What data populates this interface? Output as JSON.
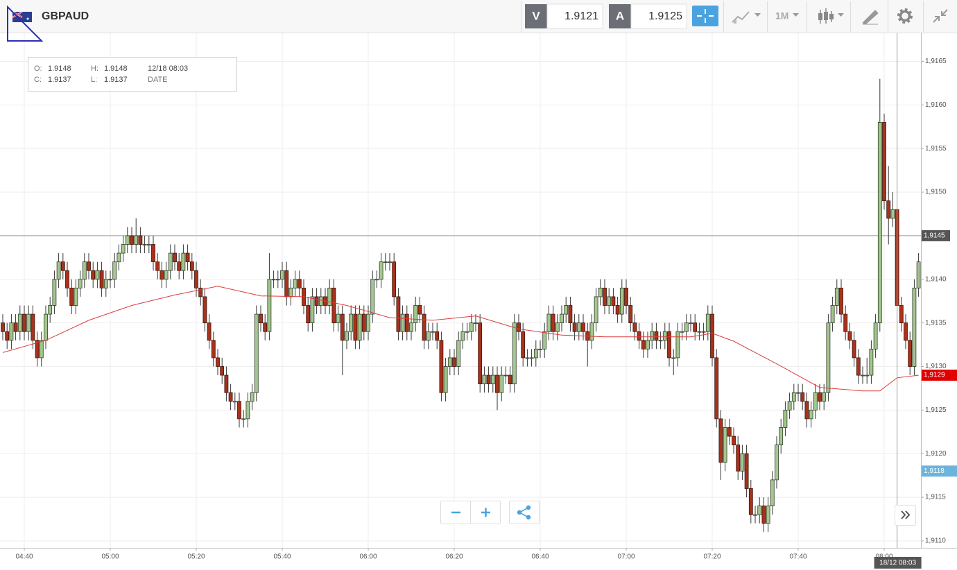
{
  "toolbar": {
    "symbol": "GBPAUD",
    "sell_label": "V",
    "sell": 1.9121,
    "buy_label": "A",
    "buy": 1.9125,
    "timeframe": "1M"
  },
  "tooltip": {
    "open_label": "O:",
    "open": 1.9148,
    "high_label": "H:",
    "high": 1.9148,
    "close_label": "C:",
    "close": 1.9137,
    "low_label": "L:",
    "low": 1.9137,
    "date": "12/18 08:03",
    "date_label": "DATE"
  },
  "chart_data": {
    "type": "candlestick",
    "up_color": "#a3c78f",
    "down_color": "#a8321c",
    "grid": true,
    "ylim": [
      1.91092,
      1.91683
    ],
    "yticks": [
      {
        "value": 1.9165,
        "label": "1,9165"
      },
      {
        "value": 1.916,
        "label": "1,9160"
      },
      {
        "value": 1.9155,
        "label": "1,9155"
      },
      {
        "value": 1.915,
        "label": "1,9150"
      },
      {
        "value": 1.9145,
        "label": "1,9145"
      },
      {
        "value": 1.914,
        "label": "1,9140"
      },
      {
        "value": 1.9135,
        "label": "1,9135"
      },
      {
        "value": 1.913,
        "label": "1,9130"
      },
      {
        "value": 1.9125,
        "label": "1,9125"
      },
      {
        "value": 1.912,
        "label": "1,9120"
      },
      {
        "value": 1.9115,
        "label": "1,9115"
      },
      {
        "value": 1.911,
        "label": "1,9110"
      }
    ],
    "xticks": [
      "04:40",
      "05:00",
      "05:20",
      "05:40",
      "06:00",
      "06:20",
      "06:40",
      "07:00",
      "07:20",
      "07:40",
      "08:00"
    ],
    "x": [
      "04:35",
      "04:36",
      "04:37",
      "04:38",
      "04:39",
      "04:40",
      "04:41",
      "04:42",
      "04:43",
      "04:44",
      "04:45",
      "04:46",
      "04:47",
      "04:48",
      "04:49",
      "04:50",
      "04:51",
      "04:52",
      "04:53",
      "04:54",
      "04:55",
      "04:56",
      "04:57",
      "04:58",
      "04:59",
      "05:00",
      "05:01",
      "05:02",
      "05:03",
      "05:04",
      "05:05",
      "05:06",
      "05:07",
      "05:08",
      "05:09",
      "05:10",
      "05:11",
      "05:12",
      "05:13",
      "05:14",
      "05:15",
      "05:16",
      "05:17",
      "05:18",
      "05:19",
      "05:20",
      "05:21",
      "05:22",
      "05:23",
      "05:24",
      "05:25",
      "05:26",
      "05:27",
      "05:28",
      "05:29",
      "05:30",
      "05:31",
      "05:32",
      "05:33",
      "05:34",
      "05:35",
      "05:36",
      "05:37",
      "05:38",
      "05:39",
      "05:40",
      "05:41",
      "05:42",
      "05:43",
      "05:44",
      "05:45",
      "05:46",
      "05:47",
      "05:48",
      "05:49",
      "05:50",
      "05:51",
      "05:52",
      "05:53",
      "05:54",
      "05:55",
      "05:56",
      "05:57",
      "05:58",
      "05:59",
      "06:00",
      "06:01",
      "06:02",
      "06:03",
      "06:04",
      "06:05",
      "06:06",
      "06:07",
      "06:08",
      "06:09",
      "06:10",
      "06:11",
      "06:12",
      "06:13",
      "06:14",
      "06:15",
      "06:16",
      "06:17",
      "06:18",
      "06:19",
      "06:20",
      "06:21",
      "06:22",
      "06:23",
      "06:24",
      "06:25",
      "06:26",
      "06:27",
      "06:28",
      "06:29",
      "06:30",
      "06:31",
      "06:32",
      "06:33",
      "06:34",
      "06:35",
      "06:36",
      "06:37",
      "06:38",
      "06:39",
      "06:40",
      "06:41",
      "06:42",
      "06:43",
      "06:44",
      "06:45",
      "06:46",
      "06:47",
      "06:48",
      "06:49",
      "06:50",
      "06:51",
      "06:52",
      "06:53",
      "06:54",
      "06:55",
      "06:56",
      "06:57",
      "06:58",
      "06:59",
      "07:00",
      "07:01",
      "07:02",
      "07:03",
      "07:04",
      "07:05",
      "07:06",
      "07:07",
      "07:08",
      "07:09",
      "07:10",
      "07:11",
      "07:12",
      "07:13",
      "07:14",
      "07:15",
      "07:16",
      "07:17",
      "07:18",
      "07:19",
      "07:20",
      "07:21",
      "07:22",
      "07:23",
      "07:24",
      "07:25",
      "07:26",
      "07:27",
      "07:28",
      "07:29",
      "07:30",
      "07:31",
      "07:32",
      "07:33",
      "07:34",
      "07:35",
      "07:36",
      "07:37",
      "07:38",
      "07:39",
      "07:40",
      "07:41",
      "07:42",
      "07:43",
      "07:44",
      "07:45",
      "07:46",
      "07:47",
      "07:48",
      "07:49",
      "07:50",
      "07:51",
      "07:52",
      "07:53",
      "07:54",
      "07:55",
      "07:56",
      "07:57",
      "07:58",
      "07:59",
      "08:00",
      "08:01",
      "08:02",
      "08:03",
      "08:04",
      "08:05",
      "08:06",
      "08:07",
      "08:08"
    ],
    "open": [
      1.9135,
      1.9134,
      1.9133,
      1.9135,
      1.9134,
      1.9136,
      1.9134,
      1.9136,
      1.9133,
      1.9131,
      1.9133,
      1.9136,
      1.9137,
      1.914,
      1.9142,
      1.9141,
      1.9139,
      1.9137,
      1.9139,
      1.914,
      1.9142,
      1.9141,
      1.914,
      1.9141,
      1.9139,
      1.914,
      1.914,
      1.9142,
      1.9143,
      1.9144,
      1.9145,
      1.9144,
      1.9145,
      1.9144,
      1.9144,
      1.9144,
      1.9142,
      1.9141,
      1.914,
      1.9141,
      1.9143,
      1.9142,
      1.9141,
      1.9143,
      1.9142,
      1.9141,
      1.9139,
      1.9138,
      1.9135,
      1.9133,
      1.9131,
      1.913,
      1.9129,
      1.9127,
      1.9126,
      1.9126,
      1.9124,
      1.9124,
      1.9126,
      1.9127,
      1.9136,
      1.9135,
      1.9134,
      1.914,
      1.914,
      1.914,
      1.9141,
      1.9138,
      1.9139,
      1.914,
      1.9139,
      1.9137,
      1.9135,
      1.9138,
      1.9137,
      1.9138,
      1.9137,
      1.9139,
      1.9135,
      1.9136,
      1.9133,
      1.9134,
      1.9136,
      1.9133,
      1.9136,
      1.9134,
      1.9136,
      1.914,
      1.914,
      1.9142,
      1.9142,
      1.9142,
      1.9138,
      1.9134,
      1.9136,
      1.9134,
      1.9135,
      1.9137,
      1.9136,
      1.9133,
      1.9134,
      1.9134,
      1.9133,
      1.9127,
      1.913,
      1.9131,
      1.913,
      1.9133,
      1.9134,
      1.9134,
      1.9135,
      1.9135,
      1.9128,
      1.9129,
      1.9128,
      1.9129,
      1.9127,
      1.9129,
      1.9129,
      1.9128,
      1.9135,
      1.9134,
      1.9131,
      1.9131,
      1.9131,
      1.9132,
      1.9132,
      1.9134,
      1.9136,
      1.9134,
      1.9135,
      1.9136,
      1.9137,
      1.9135,
      1.9134,
      1.9135,
      1.9134,
      1.9133,
      1.9135,
      1.9138,
      1.9139,
      1.9137,
      1.9138,
      1.9137,
      1.9136,
      1.9139,
      1.9137,
      1.9135,
      1.9134,
      1.9133,
      1.9132,
      1.9133,
      1.9134,
      1.9133,
      1.9133,
      1.9134,
      1.9131,
      1.9131,
      1.9134,
      1.9134,
      1.9135,
      1.9135,
      1.9134,
      1.9134,
      1.9134,
      1.9136,
      1.9131,
      1.9124,
      1.9119,
      1.9123,
      1.9122,
      1.9121,
      1.9118,
      1.912,
      1.9116,
      1.9113,
      1.9113,
      1.9114,
      1.9112,
      1.9114,
      1.9117,
      1.9121,
      1.9123,
      1.9125,
      1.9126,
      1.9127,
      1.9127,
      1.9126,
      1.9124,
      1.9125,
      1.9127,
      1.9126,
      1.9127,
      1.9135,
      1.9137,
      1.9139,
      1.9136,
      1.9134,
      1.9133,
      1.9131,
      1.9129,
      1.9129,
      1.9129,
      1.9132,
      1.9135,
      1.9158,
      1.9149,
      1.9147,
      1.9148,
      1.9137,
      1.9135,
      1.9133,
      1.913,
      1.9139
    ],
    "high": [
      1.9136,
      1.9135,
      1.9136,
      1.9136,
      1.9137,
      1.9137,
      1.9137,
      1.9137,
      1.9134,
      1.9134,
      1.9137,
      1.9138,
      1.9141,
      1.9143,
      1.9143,
      1.9142,
      1.914,
      1.914,
      1.9141,
      1.9143,
      1.9143,
      1.9142,
      1.9142,
      1.9142,
      1.9141,
      1.9141,
      1.9143,
      1.9144,
      1.9145,
      1.9146,
      1.9146,
      1.9147,
      1.9146,
      1.9145,
      1.9145,
      1.9145,
      1.9143,
      1.9142,
      1.9142,
      1.9144,
      1.9144,
      1.9143,
      1.9144,
      1.9144,
      1.9143,
      1.9142,
      1.914,
      1.9139,
      1.9136,
      1.9134,
      1.9132,
      1.9131,
      1.913,
      1.9128,
      1.9127,
      1.9127,
      1.9125,
      1.9127,
      1.9128,
      1.9137,
      1.9137,
      1.9136,
      1.9143,
      1.9141,
      1.9141,
      1.9142,
      1.9142,
      1.914,
      1.9141,
      1.9141,
      1.914,
      1.9138,
      1.9139,
      1.9139,
      1.9139,
      1.9139,
      1.914,
      1.914,
      1.9137,
      1.9137,
      1.9135,
      1.9137,
      1.9137,
      1.9137,
      1.9137,
      1.9137,
      1.9141,
      1.9141,
      1.9143,
      1.9143,
      1.9143,
      1.9143,
      1.9139,
      1.9137,
      1.9137,
      1.9136,
      1.9138,
      1.9138,
      1.9137,
      1.9135,
      1.9135,
      1.9135,
      1.9134,
      1.9131,
      1.9132,
      1.9132,
      1.9134,
      1.9135,
      1.9135,
      1.9136,
      1.9136,
      1.9136,
      1.913,
      1.913,
      1.913,
      1.913,
      1.913,
      1.913,
      1.913,
      1.9136,
      1.9136,
      1.9135,
      1.9132,
      1.9132,
      1.9133,
      1.9133,
      1.9135,
      1.9137,
      1.9137,
      1.9136,
      1.9137,
      1.9138,
      1.9138,
      1.9136,
      1.9136,
      1.9136,
      1.9135,
      1.9136,
      1.9139,
      1.914,
      1.914,
      1.9139,
      1.9139,
      1.9138,
      1.914,
      1.914,
      1.9138,
      1.9136,
      1.9135,
      1.9134,
      1.9134,
      1.9135,
      1.9135,
      1.9134,
      1.9135,
      1.9135,
      1.9132,
      1.9135,
      1.9135,
      1.9136,
      1.9136,
      1.9136,
      1.9135,
      1.9135,
      1.9137,
      1.9137,
      1.9132,
      1.9125,
      1.9124,
      1.9124,
      1.9123,
      1.9122,
      1.9121,
      1.9121,
      1.9117,
      1.9114,
      1.9115,
      1.9115,
      1.9115,
      1.9118,
      1.9122,
      1.9124,
      1.9126,
      1.9127,
      1.9128,
      1.9128,
      1.9128,
      1.9127,
      1.9126,
      1.9128,
      1.9128,
      1.9128,
      1.9136,
      1.9138,
      1.914,
      1.914,
      1.9137,
      1.9135,
      1.9134,
      1.9132,
      1.913,
      1.9131,
      1.9133,
      1.9136,
      1.9163,
      1.9159,
      1.9153,
      1.915,
      1.9148,
      1.9138,
      1.9136,
      1.9134,
      1.914,
      1.9143
    ],
    "low": [
      1.9133,
      1.9132,
      1.9132,
      1.9133,
      1.9133,
      1.9133,
      1.9133,
      1.9132,
      1.913,
      1.913,
      1.9132,
      1.9135,
      1.9136,
      1.9139,
      1.914,
      1.9138,
      1.9136,
      1.9136,
      1.9138,
      1.9139,
      1.914,
      1.9139,
      1.9139,
      1.9138,
      1.9138,
      1.9139,
      1.9139,
      1.9141,
      1.9142,
      1.9143,
      1.9143,
      1.9143,
      1.9143,
      1.9143,
      1.9143,
      1.9141,
      1.914,
      1.9139,
      1.9139,
      1.914,
      1.9141,
      1.914,
      1.914,
      1.9141,
      1.914,
      1.9138,
      1.9137,
      1.9134,
      1.9132,
      1.913,
      1.9129,
      1.9128,
      1.9126,
      1.9125,
      1.9125,
      1.9123,
      1.9123,
      1.9123,
      1.9125,
      1.9126,
      1.9134,
      1.9133,
      1.9133,
      1.9139,
      1.9139,
      1.9139,
      1.9137,
      1.9137,
      1.9138,
      1.9138,
      1.9136,
      1.9134,
      1.9134,
      1.9136,
      1.9136,
      1.9136,
      1.9136,
      1.9134,
      1.9134,
      1.9129,
      1.9132,
      1.9133,
      1.9132,
      1.9132,
      1.9133,
      1.9133,
      1.9135,
      1.9139,
      1.9139,
      1.9141,
      1.9141,
      1.9137,
      1.9133,
      1.9133,
      1.9133,
      1.9133,
      1.9134,
      1.9135,
      1.9132,
      1.9132,
      1.9133,
      1.9132,
      1.9126,
      1.9126,
      1.9129,
      1.9129,
      1.9129,
      1.9132,
      1.9133,
      1.9133,
      1.9134,
      1.9127,
      1.9127,
      1.9127,
      1.9127,
      1.9125,
      1.9126,
      1.9128,
      1.9127,
      1.9127,
      1.9133,
      1.913,
      1.913,
      1.913,
      1.913,
      1.9131,
      1.9131,
      1.9133,
      1.9133,
      1.9133,
      1.9134,
      1.9135,
      1.9134,
      1.9133,
      1.9133,
      1.9133,
      1.913,
      1.9132,
      1.9134,
      1.9137,
      1.9136,
      1.9136,
      1.9136,
      1.9135,
      1.9135,
      1.9136,
      1.9134,
      1.9133,
      1.9132,
      1.9131,
      1.9131,
      1.9132,
      1.9132,
      1.9132,
      1.9132,
      1.913,
      1.9129,
      1.913,
      1.9133,
      1.9133,
      1.9134,
      1.9133,
      1.9133,
      1.9133,
      1.9133,
      1.913,
      1.9123,
      1.9117,
      1.9118,
      1.9121,
      1.912,
      1.9117,
      1.9117,
      1.9115,
      1.9112,
      1.9112,
      1.9112,
      1.9111,
      1.9111,
      1.9113,
      1.9116,
      1.912,
      1.9122,
      1.9124,
      1.9125,
      1.9126,
      1.9125,
      1.9123,
      1.9123,
      1.9124,
      1.9125,
      1.9125,
      1.9126,
      1.9134,
      1.9136,
      1.9135,
      1.9133,
      1.9132,
      1.913,
      1.9128,
      1.9128,
      1.9128,
      1.9128,
      1.9131,
      1.9134,
      1.9148,
      1.9144,
      1.9146,
      1.9137,
      1.9134,
      1.9132,
      1.9129,
      1.9129,
      1.9138
    ],
    "close": [
      1.9134,
      1.9133,
      1.9135,
      1.9134,
      1.9136,
      1.9134,
      1.9136,
      1.9133,
      1.9131,
      1.9133,
      1.9136,
      1.9137,
      1.914,
      1.9142,
      1.9141,
      1.9139,
      1.9137,
      1.9139,
      1.914,
      1.9142,
      1.9141,
      1.914,
      1.9141,
      1.9139,
      1.914,
      1.914,
      1.9142,
      1.9143,
      1.9144,
      1.9145,
      1.9144,
      1.9145,
      1.9144,
      1.9144,
      1.9144,
      1.9142,
      1.9141,
      1.914,
      1.9141,
      1.9143,
      1.9142,
      1.9141,
      1.9143,
      1.9142,
      1.9141,
      1.9139,
      1.9138,
      1.9135,
      1.9133,
      1.9131,
      1.913,
      1.9129,
      1.9127,
      1.9126,
      1.9126,
      1.9124,
      1.9124,
      1.9126,
      1.9127,
      1.9136,
      1.9135,
      1.9134,
      1.914,
      1.914,
      1.914,
      1.9141,
      1.9138,
      1.9139,
      1.914,
      1.9139,
      1.9137,
      1.9135,
      1.9138,
      1.9137,
      1.9138,
      1.9137,
      1.9139,
      1.9135,
      1.9136,
      1.9133,
      1.9134,
      1.9136,
      1.9133,
      1.9136,
      1.9134,
      1.9136,
      1.914,
      1.914,
      1.9142,
      1.9142,
      1.9142,
      1.9138,
      1.9134,
      1.9136,
      1.9134,
      1.9135,
      1.9137,
      1.9136,
      1.9133,
      1.9134,
      1.9134,
      1.9133,
      1.9127,
      1.913,
      1.9131,
      1.913,
      1.9133,
      1.9134,
      1.9134,
      1.9135,
      1.9135,
      1.9128,
      1.9129,
      1.9128,
      1.9129,
      1.9127,
      1.9129,
      1.9129,
      1.9128,
      1.9135,
      1.9134,
      1.9131,
      1.9131,
      1.9131,
      1.9132,
      1.9132,
      1.9134,
      1.9136,
      1.9134,
      1.9135,
      1.9136,
      1.9137,
      1.9135,
      1.9134,
      1.9135,
      1.9134,
      1.9133,
      1.9135,
      1.9138,
      1.9139,
      1.9137,
      1.9138,
      1.9137,
      1.9136,
      1.9139,
      1.9137,
      1.9135,
      1.9134,
      1.9133,
      1.9132,
      1.9133,
      1.9134,
      1.9133,
      1.9133,
      1.9134,
      1.9131,
      1.9131,
      1.9134,
      1.9134,
      1.9135,
      1.9135,
      1.9134,
      1.9134,
      1.9134,
      1.9136,
      1.9131,
      1.9124,
      1.9119,
      1.9123,
      1.9122,
      1.9121,
      1.9118,
      1.912,
      1.9116,
      1.9113,
      1.9113,
      1.9114,
      1.9112,
      1.9114,
      1.9117,
      1.9121,
      1.9123,
      1.9125,
      1.9126,
      1.9127,
      1.9127,
      1.9126,
      1.9124,
      1.9125,
      1.9127,
      1.9126,
      1.9127,
      1.9135,
      1.9137,
      1.9139,
      1.9136,
      1.9134,
      1.9133,
      1.9131,
      1.9129,
      1.9129,
      1.9129,
      1.9132,
      1.9135,
      1.9158,
      1.9149,
      1.9147,
      1.9148,
      1.9137,
      1.9135,
      1.9133,
      1.913,
      1.9139,
      1.9142
    ],
    "ma": {
      "color": "#e03a3a",
      "x": [
        "04:35",
        "04:45",
        "04:55",
        "05:05",
        "05:15",
        "05:25",
        "05:35",
        "05:45",
        "05:55",
        "06:05",
        "06:15",
        "06:25",
        "06:35",
        "06:45",
        "06:55",
        "07:05",
        "07:15",
        "07:20",
        "07:25",
        "07:35",
        "07:45",
        "07:55",
        "07:59",
        "08:03",
        "08:08"
      ],
      "values": [
        1.91316,
        1.9133,
        1.91353,
        1.9137,
        1.91382,
        1.91392,
        1.91381,
        1.9138,
        1.9137,
        1.91356,
        1.91353,
        1.91358,
        1.91343,
        1.91336,
        1.91334,
        1.91334,
        1.91334,
        1.91338,
        1.91329,
        1.91303,
        1.91276,
        1.91272,
        1.91272,
        1.91287,
        1.9129
      ]
    },
    "crosshair": {
      "value": 1.9145,
      "label": "1,9145",
      "time_label": "18/12 08:03"
    },
    "price_markers": [
      {
        "value": 1.9129,
        "label": "1,9129",
        "color": "#e00000"
      },
      {
        "value": 1.9118,
        "label": "1,9118",
        "color": "#6cb4dc"
      }
    ]
  }
}
